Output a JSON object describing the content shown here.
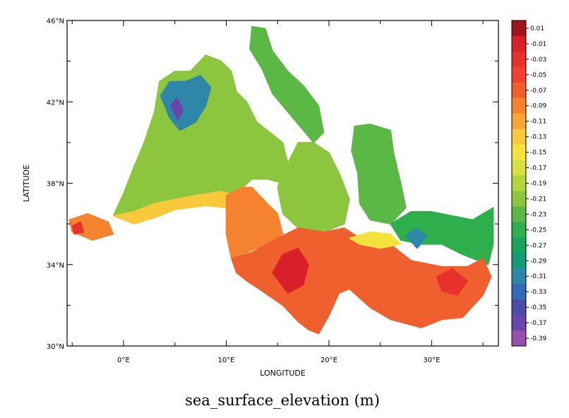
{
  "window": {
    "frame_colors": {
      "left_strip": "#c8ccd4"
    }
  },
  "chart_data": {
    "type": "heatmap",
    "title": "sea_surface_elevation (m)",
    "xlabel": "LONGITUDE",
    "ylabel": "LATITUDE",
    "xlim": [
      -5.5,
      36.5
    ],
    "ylim": [
      30,
      46
    ],
    "x_ticks": [
      {
        "value": 0,
        "label": "0°E"
      },
      {
        "value": 10,
        "label": "10°E"
      },
      {
        "value": 20,
        "label": "20°E"
      },
      {
        "value": 30,
        "label": "30°E"
      }
    ],
    "y_ticks": [
      {
        "value": 30,
        "label": "30°N"
      },
      {
        "value": 34,
        "label": "34°N"
      },
      {
        "value": 38,
        "label": "38°N"
      },
      {
        "value": 42,
        "label": "42°N"
      },
      {
        "value": 46,
        "label": "46°N"
      }
    ],
    "colorbar": {
      "labels": [
        "0.01",
        "-0.01",
        "-0.03",
        "-0.05",
        "-0.07",
        "-0.09",
        "-0.11",
        "-0.13",
        "-0.15",
        "-0.17",
        "-0.19",
        "-0.21",
        "-0.23",
        "-0.25",
        "-0.27",
        "-0.29",
        "-0.31",
        "-0.33",
        "-0.35",
        "-0.37",
        "-0.39"
      ],
      "colors": [
        "#a0141e",
        "#d8202a",
        "#e8302c",
        "#f0402e",
        "#f0602e",
        "#f5822e",
        "#f7a535",
        "#f8c93a",
        "#f5e23c",
        "#d8e040",
        "#b4d43c",
        "#8cc63e",
        "#5cb845",
        "#2fae4c",
        "#1aa35a",
        "#149a78",
        "#2e86a8",
        "#3468b8",
        "#4a4ca8",
        "#6a46ac",
        "#9650b0"
      ]
    },
    "regions": [
      {
        "name": "western_basin_north",
        "value": -0.21,
        "points": [
          [
            -1,
            36.4
          ],
          [
            0,
            37.5
          ],
          [
            1,
            38.8
          ],
          [
            2,
            40
          ],
          [
            3,
            41.5
          ],
          [
            3.5,
            43
          ],
          [
            5,
            43.5
          ],
          [
            6.5,
            43.5
          ],
          [
            8,
            44.3
          ],
          [
            9.5,
            44
          ],
          [
            10.5,
            43.5
          ],
          [
            11,
            42.5
          ],
          [
            12,
            42
          ],
          [
            13,
            41
          ],
          [
            14,
            40.6
          ],
          [
            15.5,
            40
          ],
          [
            16,
            39
          ],
          [
            15.5,
            38
          ],
          [
            14,
            38.2
          ],
          [
            12.5,
            38.2
          ],
          [
            11,
            37.5
          ],
          [
            9.5,
            37.3
          ],
          [
            7,
            37
          ],
          [
            5,
            36.8
          ],
          [
            3,
            36.7
          ],
          [
            1,
            36.4
          ]
        ]
      },
      {
        "name": "gulf_of_lion_low",
        "value": -0.31,
        "points": [
          [
            3.6,
            42.3
          ],
          [
            4.5,
            43
          ],
          [
            6,
            43
          ],
          [
            7.5,
            43.3
          ],
          [
            8.5,
            42.7
          ],
          [
            8,
            41.8
          ],
          [
            7,
            41
          ],
          [
            5.5,
            40.6
          ],
          [
            4.5,
            41.2
          ]
        ]
      },
      {
        "name": "gulf_of_lion_min",
        "value": -0.37,
        "points": [
          [
            4.6,
            41.8
          ],
          [
            5.2,
            42.2
          ],
          [
            5.8,
            41.6
          ],
          [
            5.3,
            41.1
          ]
        ]
      },
      {
        "name": "adriatic",
        "value": -0.23,
        "points": [
          [
            12.5,
            45.7
          ],
          [
            13.8,
            45.6
          ],
          [
            14.5,
            44.5
          ],
          [
            16,
            43.5
          ],
          [
            17.5,
            42.8
          ],
          [
            19,
            41.8
          ],
          [
            19.5,
            40.5
          ],
          [
            18.5,
            40
          ],
          [
            17.5,
            40.6
          ],
          [
            16,
            41.5
          ],
          [
            14.5,
            42.4
          ],
          [
            13.5,
            43.6
          ],
          [
            12.3,
            44.6
          ]
        ]
      },
      {
        "name": "aegean",
        "value": -0.23,
        "points": [
          [
            22.5,
            40.8
          ],
          [
            24,
            40.9
          ],
          [
            26,
            40.6
          ],
          [
            26.3,
            39.5
          ],
          [
            27,
            38
          ],
          [
            27.5,
            36.8
          ],
          [
            26,
            36
          ],
          [
            24,
            36.2
          ],
          [
            23,
            37
          ],
          [
            22.8,
            38.5
          ],
          [
            22.2,
            39.6
          ]
        ]
      },
      {
        "name": "ionian_central",
        "value": -0.21,
        "points": [
          [
            16,
            39
          ],
          [
            17,
            40
          ],
          [
            18.5,
            40
          ],
          [
            20,
            39.5
          ],
          [
            21,
            38.5
          ],
          [
            22,
            37.2
          ],
          [
            21.5,
            36
          ],
          [
            19,
            35.5
          ],
          [
            17,
            35.8
          ],
          [
            15.5,
            36.5
          ],
          [
            15,
            37.8
          ]
        ]
      },
      {
        "name": "levantine_north",
        "value": -0.25,
        "points": [
          [
            26,
            36
          ],
          [
            28,
            36.6
          ],
          [
            30,
            36.6
          ],
          [
            32,
            36.4
          ],
          [
            34,
            36.2
          ],
          [
            36,
            36.8
          ],
          [
            36,
            35
          ],
          [
            35.5,
            34
          ],
          [
            33,
            34.5
          ],
          [
            31,
            35
          ],
          [
            29,
            35
          ],
          [
            27,
            35.2
          ]
        ]
      },
      {
        "name": "rhodes_gyre_low",
        "value": -0.31,
        "points": [
          [
            27.5,
            35.4
          ],
          [
            28.5,
            35.8
          ],
          [
            29.5,
            35.4
          ],
          [
            28.6,
            34.8
          ]
        ]
      },
      {
        "name": "alboran",
        "value": -0.09,
        "points": [
          [
            -5.3,
            36.2
          ],
          [
            -3.5,
            36.5
          ],
          [
            -1.5,
            36.1
          ],
          [
            -1,
            35.5
          ],
          [
            -3,
            35.2
          ],
          [
            -5,
            35.6
          ]
        ]
      },
      {
        "name": "alboran_max",
        "value": -0.03,
        "points": [
          [
            -5,
            35.9
          ],
          [
            -4.2,
            36.1
          ],
          [
            -3.9,
            35.6
          ],
          [
            -4.8,
            35.5
          ]
        ]
      },
      {
        "name": "algerian_coast",
        "value": -0.13,
        "points": [
          [
            -1,
            36.4
          ],
          [
            1,
            36.6
          ],
          [
            3,
            37
          ],
          [
            5,
            37.2
          ],
          [
            7,
            37.4
          ],
          [
            9.5,
            37.6
          ],
          [
            11,
            37.4
          ],
          [
            10,
            36.8
          ],
          [
            8,
            36.9
          ],
          [
            5,
            36.7
          ],
          [
            3,
            36.3
          ],
          [
            1,
            36
          ]
        ]
      },
      {
        "name": "sicily_channel",
        "value": -0.09,
        "points": [
          [
            10,
            37.4
          ],
          [
            11.5,
            37.8
          ],
          [
            12.5,
            37.8
          ],
          [
            14,
            37
          ],
          [
            15,
            36.5
          ],
          [
            15.5,
            35.5
          ],
          [
            14,
            35
          ],
          [
            12,
            34.6
          ],
          [
            10.5,
            34.3
          ],
          [
            10,
            35.5
          ]
        ]
      },
      {
        "name": "ionian_south",
        "value": -0.07,
        "points": [
          [
            10.5,
            34.3
          ],
          [
            12.5,
            34.6
          ],
          [
            15,
            35.3
          ],
          [
            17,
            35.8
          ],
          [
            19.5,
            35.6
          ],
          [
            21.5,
            35.8
          ],
          [
            23,
            35.3
          ],
          [
            26,
            35
          ],
          [
            28,
            34.2
          ],
          [
            31,
            33.9
          ],
          [
            33.5,
            33.9
          ],
          [
            35,
            34.3
          ],
          [
            35.8,
            33.4
          ],
          [
            35,
            32.5
          ],
          [
            33,
            31.4
          ],
          [
            31,
            31.3
          ],
          [
            29,
            30.9
          ],
          [
            26,
            31.3
          ],
          [
            24,
            31.9
          ],
          [
            22,
            32.8
          ],
          [
            21,
            32.6
          ],
          [
            20,
            31.5
          ],
          [
            19,
            30.6
          ],
          [
            18,
            30.8
          ],
          [
            17,
            31.2
          ],
          [
            15.5,
            32
          ],
          [
            13.5,
            32.7
          ],
          [
            12,
            33.2
          ],
          [
            11,
            33.6
          ]
        ]
      },
      {
        "name": "libyan_max",
        "value": -0.01,
        "points": [
          [
            14.5,
            33.6
          ],
          [
            15.5,
            34.5
          ],
          [
            17,
            34.8
          ],
          [
            18,
            34
          ],
          [
            17.5,
            33
          ],
          [
            16,
            32.6
          ]
        ]
      },
      {
        "name": "levantine_south_max",
        "value": -0.03,
        "points": [
          [
            30.5,
            33.4
          ],
          [
            32,
            33.8
          ],
          [
            33.5,
            33.2
          ],
          [
            32.5,
            32.5
          ],
          [
            31,
            32.7
          ]
        ]
      },
      {
        "name": "crete_band",
        "value": -0.15,
        "points": [
          [
            22,
            35.3
          ],
          [
            24,
            35.6
          ],
          [
            26,
            35.5
          ],
          [
            27,
            35
          ],
          [
            25,
            34.8
          ],
          [
            23,
            35
          ]
        ]
      }
    ]
  }
}
